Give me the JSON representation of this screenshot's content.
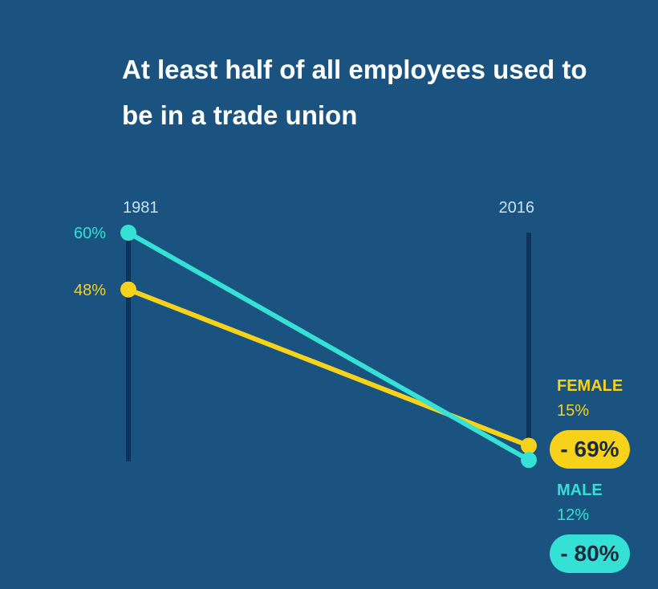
{
  "title": "At least half of all employees used to be in a trade union",
  "colors": {
    "background": "#1a5280",
    "female": "#f6d21b",
    "male": "#35e0d4",
    "axis": "#0d3358",
    "year_label": "#c7e3f7"
  },
  "chart_data": {
    "type": "line",
    "x": [
      "1981",
      "2016"
    ],
    "series": [
      {
        "name": "FEMALE",
        "values": [
          48,
          15
        ],
        "start_label": "48%",
        "end_label": "15%",
        "change_label": "- 69%",
        "color": "#f6d21b"
      },
      {
        "name": "MALE",
        "values": [
          60,
          12
        ],
        "start_label": "60%",
        "end_label": "12%",
        "change_label": "- 80%",
        "color": "#35e0d4"
      }
    ],
    "ylim": [
      0,
      60
    ],
    "grid": false
  }
}
